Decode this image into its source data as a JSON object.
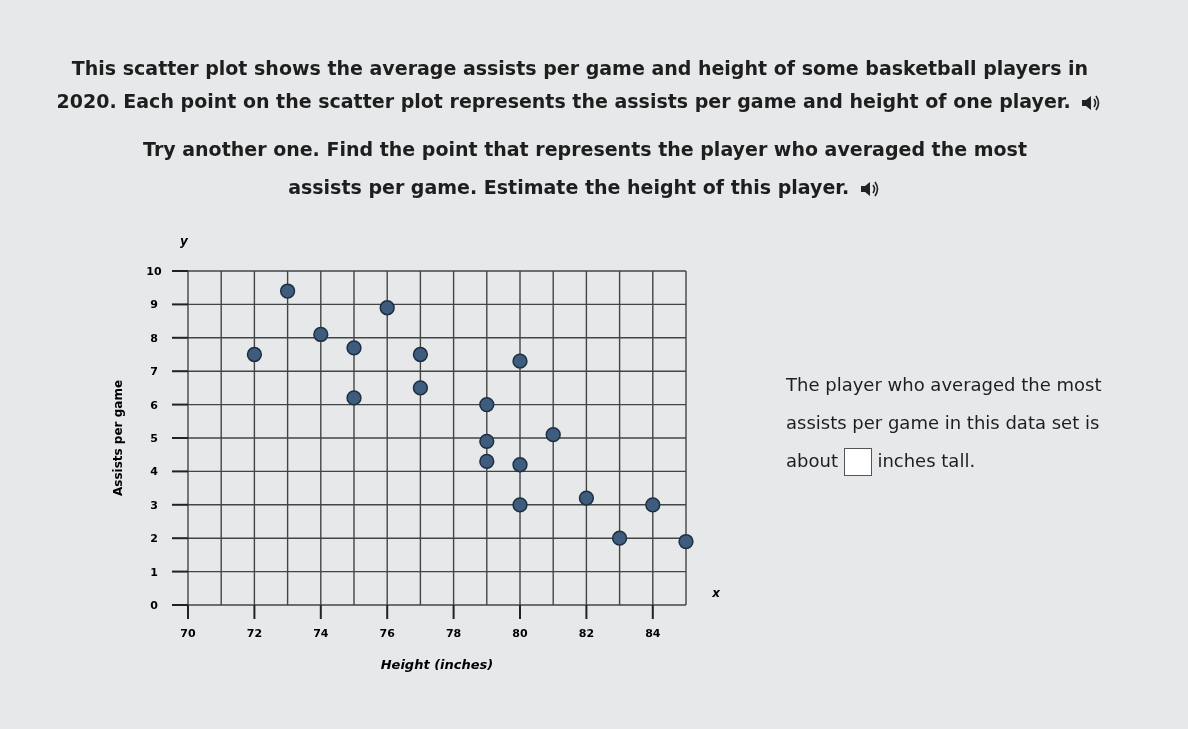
{
  "chart_data": {
    "type": "scatter",
    "title": "This scatter plot shows the average assists per game and height of some basketball players in 2020. Each point on the scatter plot represents the assists per game and height of one player.",
    "subtitle": "Try another one. Find the point that represents the player who averaged the most assists per game. Estimate the height of this player.",
    "xlabel": "Height (inches)",
    "ylabel": "Assists per game",
    "annotations": [
      "y",
      "x",
      "The player who averaged the most assists per game in this data set is about",
      "inches tall."
    ],
    "series": [
      {
        "color": "#3e5c7e",
        "x": [
          72,
          73,
          74,
          75,
          75,
          76,
          77,
          77,
          79,
          79,
          79,
          80,
          80,
          80,
          81,
          82,
          83,
          84,
          85
        ],
        "values": [
          7.5,
          9.4,
          8.1,
          7.7,
          6.2,
          8.9,
          7.5,
          6.5,
          6.0,
          4.9,
          4.3,
          7.3,
          4.2,
          3.0,
          5.1,
          3.2,
          2.0,
          3.0,
          1.9
        ]
      }
    ],
    "xlim": [
      70,
      85
    ],
    "ylim": [
      0,
      10
    ],
    "xticks": [
      70,
      {
        "value": 71,
        "label": null
      },
      72,
      {
        "value": 73,
        "label": null
      },
      74,
      {
        "value": 75,
        "label": null
      },
      76,
      {
        "value": 77,
        "label": null
      },
      78,
      {
        "value": 79,
        "label": null
      },
      80,
      {
        "value": 81,
        "label": null
      },
      82,
      {
        "value": 83,
        "label": null
      },
      84,
      {
        "value": 85,
        "label": null
      }
    ],
    "yticks": [
      0,
      1,
      2,
      3,
      4,
      5,
      6,
      7,
      8,
      9,
      10
    ],
    "grid": true,
    "marker": "circle"
  }
}
